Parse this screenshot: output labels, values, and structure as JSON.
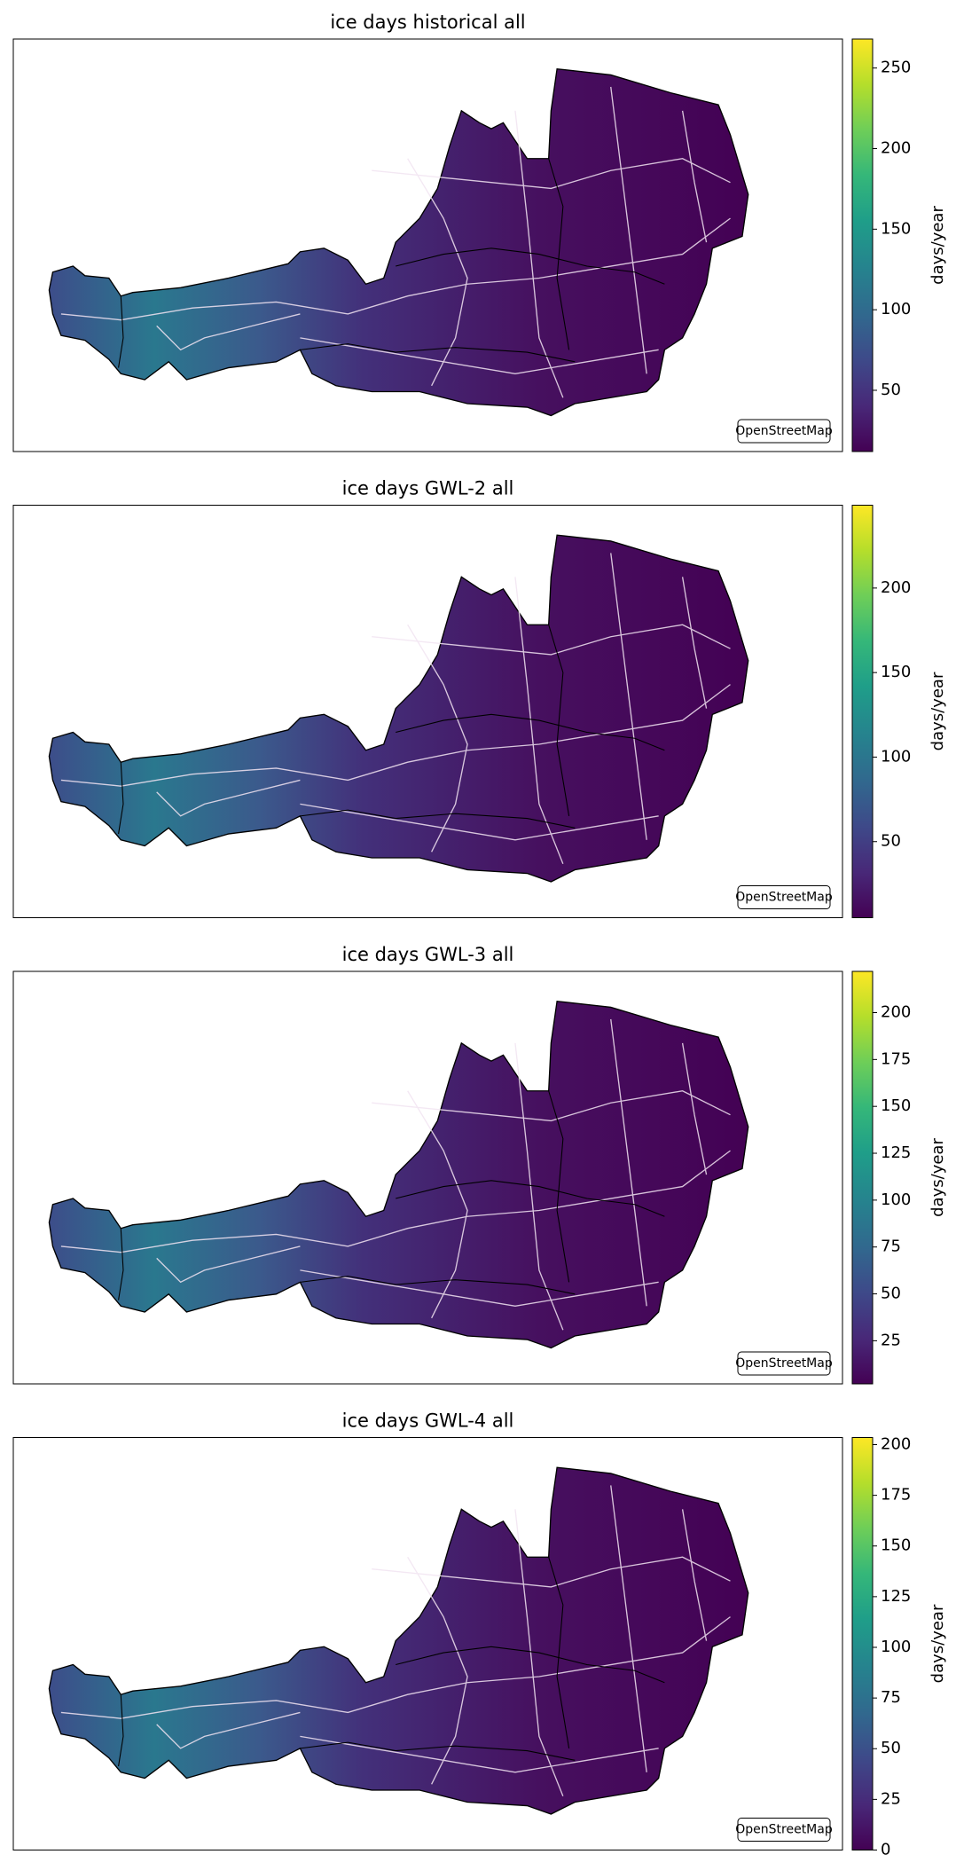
{
  "maps": [
    {
      "title": "ice days historical all",
      "colorbar": {
        "label": "days/year",
        "lim": [
          12,
          268
        ],
        "ticks": [
          50,
          100,
          150,
          200,
          250
        ]
      },
      "attribution": "OpenStreetMap"
    },
    {
      "title": "ice days GWL-2 all",
      "colorbar": {
        "label": "days/year",
        "lim": [
          5,
          249
        ],
        "ticks": [
          50,
          100,
          150,
          200
        ]
      },
      "attribution": "OpenStreetMap"
    },
    {
      "title": "ice days GWL-3 all",
      "colorbar": {
        "label": "days/year",
        "lim": [
          2,
          222
        ],
        "ticks": [
          25,
          50,
          75,
          100,
          125,
          150,
          175,
          200
        ]
      },
      "attribution": "OpenStreetMap"
    },
    {
      "title": "ice days GWL-4 all",
      "colorbar": {
        "label": "days/year",
        "lim": [
          0,
          203.5
        ],
        "ticks": [
          0,
          25,
          50,
          75,
          100,
          125,
          150,
          175,
          200
        ]
      },
      "attribution": "OpenStreetMap"
    }
  ]
}
